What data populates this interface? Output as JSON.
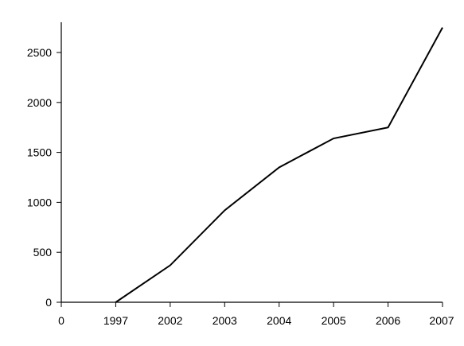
{
  "chart_data": {
    "type": "line",
    "title": "",
    "xlabel": "",
    "ylabel": "",
    "x_tick_labels": [
      "0",
      "1997",
      "2002",
      "2003",
      "2004",
      "2005",
      "2006",
      "2007"
    ],
    "categories": [
      "1997",
      "2002",
      "2003",
      "2004",
      "2005",
      "2006",
      "2007"
    ],
    "series": [
      {
        "values": [
          0,
          370,
          920,
          1350,
          1640,
          1750,
          2750
        ]
      }
    ],
    "y_ticks": [
      0,
      500,
      1000,
      1500,
      2000,
      2500
    ],
    "ylim": [
      0,
      2800
    ],
    "grid": false,
    "legend": "none",
    "colors": {
      "line": "#000000",
      "axis": "#000000",
      "text": "#000000",
      "background": "#ffffff"
    }
  }
}
